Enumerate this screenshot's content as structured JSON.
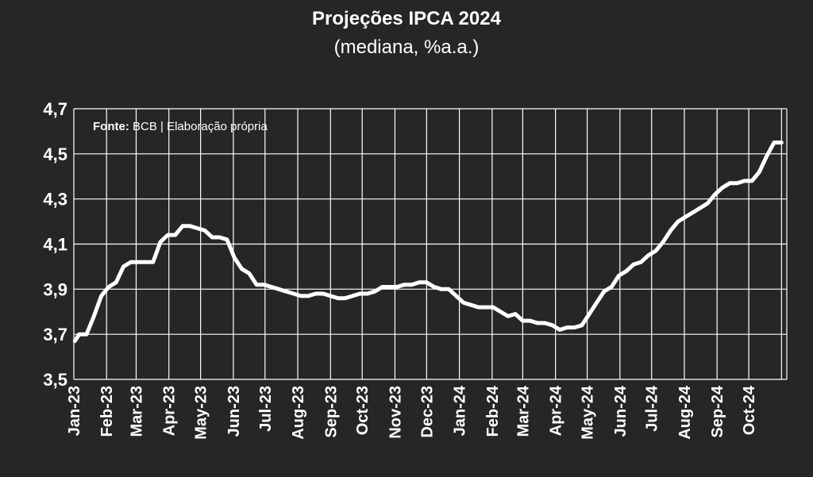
{
  "title": "Projeções IPCA 2024",
  "subtitle": "(mediana, %a.a.)",
  "source_label": "Fonte:",
  "source_text": "BCB | Elaboração própria",
  "colors": {
    "background": "#262626",
    "line": "#ffffff",
    "grid": "#ffffff",
    "text": "#ffffff"
  },
  "chart_data": {
    "type": "line",
    "title": "Projeções IPCA 2024",
    "subtitle": "(mediana, %a.a.)",
    "xlabel": "",
    "ylabel": "",
    "ylim": [
      3.5,
      4.7
    ],
    "y_ticks": [
      "3,5",
      "3,7",
      "3,9",
      "4,1",
      "4,3",
      "4,5",
      "4,7"
    ],
    "y_tick_values": [
      3.5,
      3.7,
      3.9,
      4.1,
      4.3,
      4.5,
      4.7
    ],
    "x_tick_labels": [
      "Jan-23",
      "Feb-23",
      "Mar-23",
      "Apr-23",
      "May-23",
      "Jun-23",
      "Jul-23",
      "Aug-23",
      "Sep-23",
      "Oct-23",
      "Nov-23",
      "Dec-23",
      "Jan-24",
      "Feb-24",
      "Mar-24",
      "Apr-24",
      "May-24",
      "Jun-24",
      "Jul-24",
      "Aug-24",
      "Sep-24",
      "Oct-24"
    ],
    "grid": true,
    "legend": "none",
    "series": [
      {
        "x": [
          "2023-01-02",
          "2023-01-06",
          "2023-01-13",
          "2023-01-20",
          "2023-01-27",
          "2023-02-03",
          "2023-02-10",
          "2023-02-17",
          "2023-02-24",
          "2023-03-03",
          "2023-03-10",
          "2023-03-17",
          "2023-03-24",
          "2023-03-31",
          "2023-04-07",
          "2023-04-14",
          "2023-04-21",
          "2023-04-28",
          "2023-05-05",
          "2023-05-12",
          "2023-05-19",
          "2023-05-26",
          "2023-06-02",
          "2023-06-09",
          "2023-06-16",
          "2023-06-23",
          "2023-06-30",
          "2023-07-07",
          "2023-07-14",
          "2023-07-21",
          "2023-07-28",
          "2023-08-04",
          "2023-08-11",
          "2023-08-18",
          "2023-08-25",
          "2023-09-01",
          "2023-09-08",
          "2023-09-15",
          "2023-09-22",
          "2023-09-29",
          "2023-10-06",
          "2023-10-13",
          "2023-10-20",
          "2023-10-27",
          "2023-11-03",
          "2023-11-10",
          "2023-11-17",
          "2023-11-24",
          "2023-12-01",
          "2023-12-08",
          "2023-12-15",
          "2023-12-22",
          "2023-12-29",
          "2024-01-05",
          "2024-01-12",
          "2024-01-19",
          "2024-01-26",
          "2024-02-02",
          "2024-02-09",
          "2024-02-16",
          "2024-02-23",
          "2024-03-01",
          "2024-03-08",
          "2024-03-15",
          "2024-03-22",
          "2024-03-29",
          "2024-04-05",
          "2024-04-12",
          "2024-04-19",
          "2024-04-26",
          "2024-05-03",
          "2024-05-10",
          "2024-05-17",
          "2024-05-24",
          "2024-05-31",
          "2024-06-07",
          "2024-06-14",
          "2024-06-21",
          "2024-06-28",
          "2024-07-05",
          "2024-07-12",
          "2024-07-19",
          "2024-07-26",
          "2024-08-02",
          "2024-08-09",
          "2024-08-16",
          "2024-08-23",
          "2024-08-30",
          "2024-09-06",
          "2024-09-13",
          "2024-09-20",
          "2024-09-27",
          "2024-10-04",
          "2024-10-11",
          "2024-10-18",
          "2024-10-25",
          "2024-11-01"
        ],
        "values": [
          3.67,
          3.7,
          3.7,
          3.78,
          3.87,
          3.91,
          3.93,
          4.0,
          4.02,
          4.02,
          4.02,
          4.02,
          4.11,
          4.14,
          4.14,
          4.18,
          4.18,
          4.17,
          4.16,
          4.13,
          4.13,
          4.12,
          4.04,
          3.99,
          3.97,
          3.92,
          3.92,
          3.91,
          3.9,
          3.89,
          3.88,
          3.87,
          3.87,
          3.88,
          3.88,
          3.87,
          3.86,
          3.86,
          3.87,
          3.88,
          3.88,
          3.89,
          3.91,
          3.91,
          3.91,
          3.92,
          3.92,
          3.93,
          3.93,
          3.91,
          3.9,
          3.9,
          3.87,
          3.84,
          3.83,
          3.82,
          3.82,
          3.82,
          3.8,
          3.78,
          3.79,
          3.76,
          3.76,
          3.75,
          3.75,
          3.74,
          3.72,
          3.73,
          3.73,
          3.74,
          3.79,
          3.84,
          3.89,
          3.91,
          3.96,
          3.98,
          4.01,
          4.02,
          4.05,
          4.07,
          4.11,
          4.16,
          4.2,
          4.22,
          4.24,
          4.26,
          4.28,
          4.32,
          4.35,
          4.37,
          4.37,
          4.38,
          4.38,
          4.42,
          4.49,
          4.55,
          4.55
        ]
      }
    ]
  }
}
